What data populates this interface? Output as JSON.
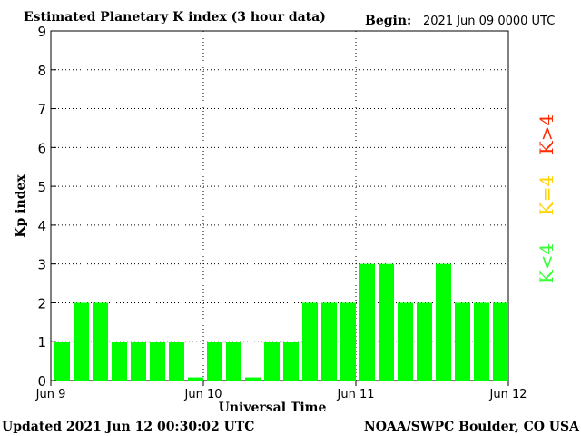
{
  "header": {
    "title": "Estimated Planetary K index (3 hour data)",
    "begin_label": "Begin:",
    "begin_value": "2021 Jun 09 0000 UTC"
  },
  "footer": {
    "updated": "Updated 2021 Jun 12 00:30:02 UTC",
    "source": "NOAA/SWPC Boulder, CO USA"
  },
  "legend": [
    {
      "label": "K>4",
      "color": "#ff2a00"
    },
    {
      "label": "K=4",
      "color": "#ffd200"
    },
    {
      "label": "K<4",
      "color": "#33ff33"
    }
  ],
  "chart_data": {
    "type": "bar",
    "title": "Estimated Planetary K index (3 hour data)",
    "xlabel": "Universal Time",
    "ylabel": "Kp index",
    "ylim": [
      0,
      9
    ],
    "yticks": [
      "0",
      "1",
      "2",
      "3",
      "4",
      "5",
      "6",
      "7",
      "8",
      "9"
    ],
    "xticks": [
      "Jun 9",
      "Jun 10",
      "Jun 11",
      "Jun 12"
    ],
    "interval_hours": 3,
    "values": [
      1,
      2,
      2,
      1,
      1,
      1,
      1,
      0,
      1,
      1,
      0,
      1,
      1,
      2,
      2,
      2,
      3,
      3,
      2,
      2,
      3,
      2,
      2,
      2
    ],
    "bar_color": "#00ff00",
    "grid": "dotted",
    "legend_position": "right"
  }
}
